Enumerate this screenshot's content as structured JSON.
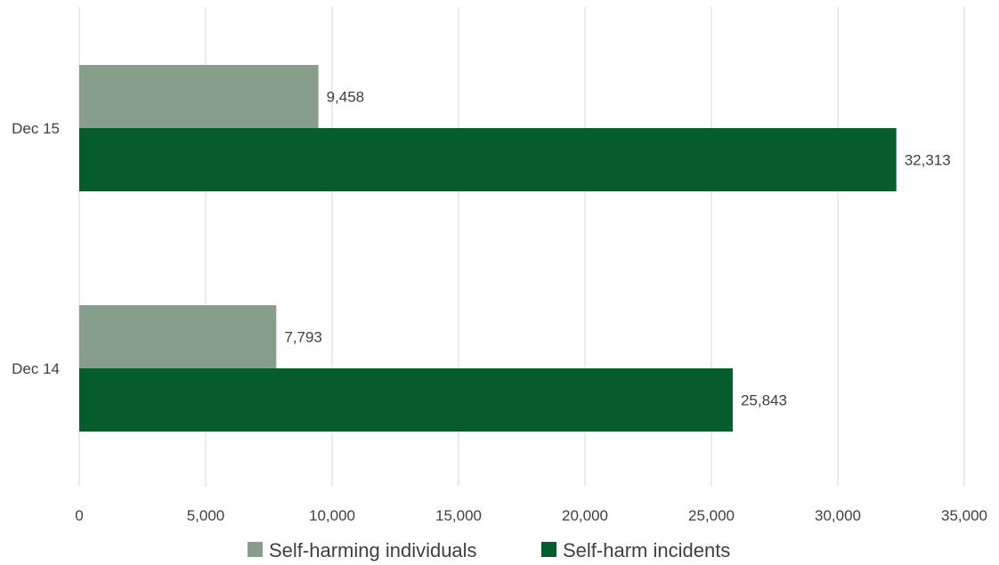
{
  "chart_data": {
    "type": "bar",
    "orientation": "horizontal",
    "categories": [
      "Dec 15",
      "Dec 14"
    ],
    "series": [
      {
        "name": "Self-harming individuals",
        "values": [
          9458,
          7793
        ],
        "labels": [
          "9,458",
          "7,793"
        ],
        "color": "#869e8a"
      },
      {
        "name": "Self-harm incidents",
        "values": [
          32313,
          25843
        ],
        "labels": [
          "32,313",
          "25,843"
        ],
        "color": "#075c2e"
      }
    ],
    "xlim": [
      0,
      35000
    ],
    "xticks": [
      0,
      5000,
      10000,
      15000,
      20000,
      25000,
      30000,
      35000
    ],
    "xtick_labels": [
      "0",
      "5,000",
      "10,000",
      "15,000",
      "20,000",
      "25,000",
      "30,000",
      "35,000"
    ],
    "grid": true,
    "legend_position": "bottom",
    "title": "",
    "xlabel": "",
    "ylabel": ""
  }
}
